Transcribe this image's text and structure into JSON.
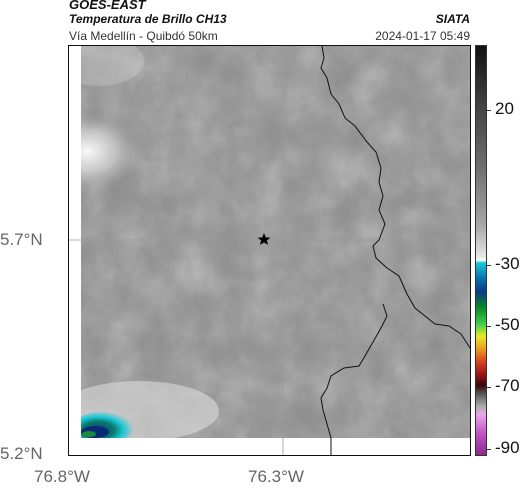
{
  "header": {
    "satellite": "GOES-EAST",
    "product_title": "Temperatura de Brillo CH13",
    "region": "Vía Medellín - Quibdó 50km",
    "organization": "SIATA",
    "timestamp": "2024-01-17 05:49"
  },
  "map": {
    "lat_labels": [
      "5.7°N",
      "5.2°N"
    ],
    "lon_labels": [
      "76.8°W",
      "76.3°W"
    ],
    "marker_icon": "star-icon",
    "gridline_color": "#9a9a9a",
    "border_color": "#000000"
  },
  "colorbar": {
    "tick_labels": [
      "20",
      "-30",
      "-50",
      "-70",
      "-90"
    ],
    "colors": {
      "warm": "#111111",
      "mid_gray": "#8a8a8a",
      "cyan": "#19c8d8",
      "blue": "#0a3a88",
      "green": "#3fd04f",
      "yellow": "#e8e828",
      "red": "#d84820",
      "dark_red": "#3a0808",
      "magenta": "#c050c0"
    }
  }
}
